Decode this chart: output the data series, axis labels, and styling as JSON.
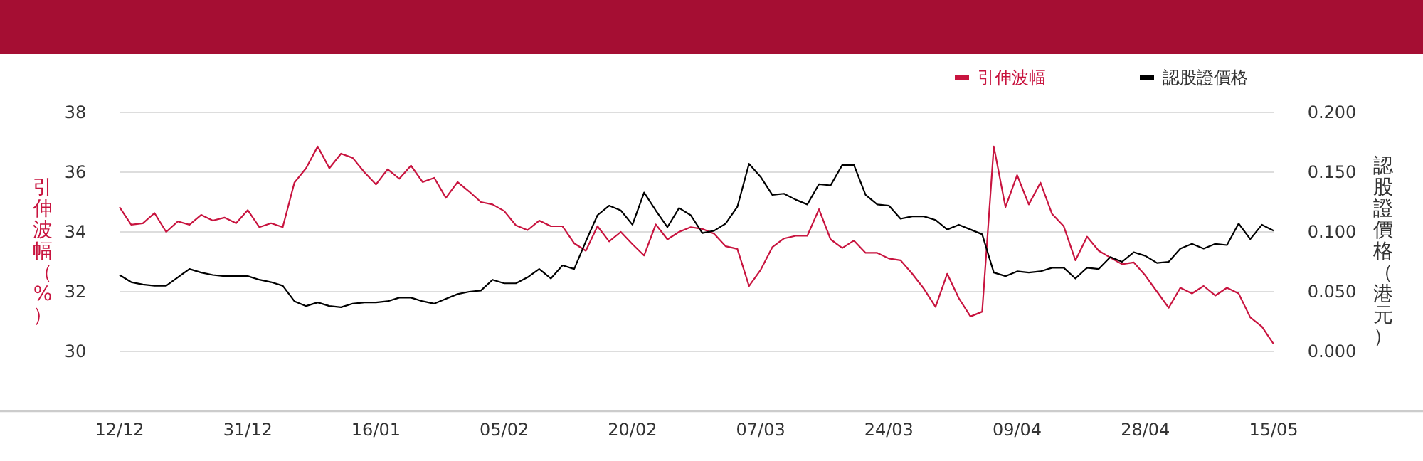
{
  "chart_data": {
    "type": "line",
    "categories": [
      "12/12",
      null,
      null,
      null,
      null,
      null,
      null,
      null,
      null,
      null,
      null,
      "31/12",
      null,
      null,
      null,
      null,
      null,
      null,
      null,
      null,
      null,
      null,
      "16/01",
      null,
      null,
      null,
      null,
      null,
      null,
      null,
      null,
      null,
      null,
      "05/02",
      null,
      null,
      null,
      null,
      null,
      null,
      null,
      null,
      null,
      null,
      "20/02",
      null,
      null,
      null,
      null,
      null,
      null,
      null,
      null,
      null,
      null,
      "07/03",
      null,
      null,
      null,
      null,
      null,
      null,
      null,
      null,
      null,
      null,
      "24/03",
      null,
      null,
      null,
      null,
      null,
      null,
      null,
      null,
      null,
      null,
      "09/04",
      null,
      null,
      null,
      null,
      null,
      null,
      null,
      null,
      null,
      null,
      "28/04",
      null,
      null,
      null,
      null,
      null,
      null,
      null,
      null,
      null,
      null,
      "15/05"
    ],
    "ylabel": "引伸波幅（%）",
    "y2label": "認股證價格（港元）",
    "ylim": [
      28,
      38
    ],
    "yticks": [
      30,
      32,
      34,
      36,
      38
    ],
    "y2lim": [
      -0.05,
      0.2
    ],
    "y2ticks": [
      {
        "value": 0,
        "label": "0.000"
      },
      {
        "value": 0.05,
        "label": "0.050"
      },
      {
        "value": 0.1,
        "label": "0.100"
      },
      {
        "value": 0.15,
        "label": "0.150"
      },
      {
        "value": 0.2,
        "label": "0.200"
      }
    ],
    "grid": "y",
    "legend": "top right",
    "marker": "none",
    "line_style": "solid",
    "series": [
      {
        "name": "引伸波幅",
        "color": "#c8143f",
        "values": [
          34.83,
          34.24,
          34.29,
          34.63,
          34.0,
          34.35,
          34.24,
          34.57,
          34.38,
          34.48,
          34.29,
          34.73,
          34.16,
          34.29,
          34.16,
          35.65,
          36.13,
          36.86,
          36.13,
          36.62,
          36.48,
          36.0,
          35.59,
          36.1,
          35.78,
          36.22,
          35.67,
          35.81,
          35.14,
          35.67,
          35.35,
          35.0,
          34.92,
          34.7,
          34.22,
          34.06,
          34.38,
          34.19,
          34.19,
          33.62,
          33.37,
          34.19,
          33.68,
          34.0,
          33.59,
          33.21,
          34.25,
          33.75,
          34.0,
          34.16,
          34.1,
          33.94,
          33.52,
          33.43,
          32.19,
          32.73,
          33.49,
          33.78,
          33.87,
          33.87,
          34.76,
          33.75,
          33.46,
          33.71,
          33.3,
          33.3,
          33.11,
          33.05,
          32.6,
          32.1,
          31.49,
          32.6,
          31.78,
          31.17,
          31.33,
          36.86,
          34.83,
          35.9,
          34.92,
          35.65,
          34.6,
          34.19,
          33.05,
          33.84,
          33.37,
          33.14,
          32.92,
          32.98,
          32.54,
          32.0,
          31.46,
          32.13,
          31.94,
          32.19,
          31.87,
          32.13,
          31.94,
          31.14,
          30.83,
          30.25
        ]
      },
      {
        "name": "認股證價格",
        "color": "#000000",
        "axis": "y2",
        "values": [
          0.064,
          0.058,
          0.056,
          0.055,
          0.055,
          0.062,
          0.069,
          0.066,
          0.064,
          0.063,
          0.063,
          0.063,
          0.06,
          0.058,
          0.055,
          0.042,
          0.038,
          0.041,
          0.038,
          0.037,
          0.04,
          0.041,
          0.041,
          0.042,
          0.045,
          0.045,
          0.042,
          0.04,
          0.044,
          0.048,
          0.05,
          0.051,
          0.06,
          0.057,
          0.057,
          0.062,
          0.069,
          0.061,
          0.072,
          0.069,
          0.092,
          0.114,
          0.122,
          0.118,
          0.106,
          0.133,
          0.118,
          0.104,
          0.12,
          0.114,
          0.099,
          0.101,
          0.107,
          0.121,
          0.157,
          0.146,
          0.131,
          0.132,
          0.127,
          0.123,
          0.14,
          0.139,
          0.156,
          0.156,
          0.131,
          0.123,
          0.122,
          0.111,
          0.113,
          0.113,
          0.11,
          0.102,
          0.106,
          0.102,
          0.098,
          0.066,
          0.063,
          0.067,
          0.066,
          0.067,
          0.07,
          0.07,
          0.061,
          0.07,
          0.069,
          0.079,
          0.075,
          0.083,
          0.08,
          0.074,
          0.075,
          0.086,
          0.09,
          0.086,
          0.09,
          0.089,
          0.107,
          0.094,
          0.106,
          0.101
        ]
      }
    ]
  }
}
